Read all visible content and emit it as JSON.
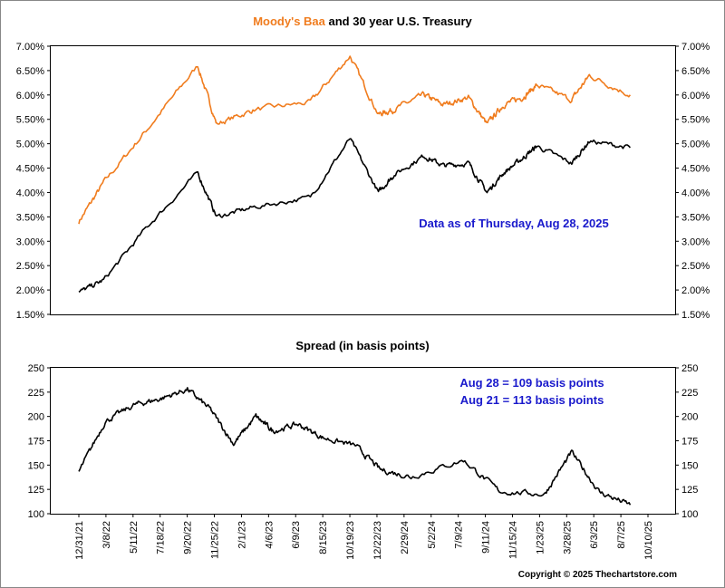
{
  "colors": {
    "baa": "#F07C1E",
    "treasury": "#000000",
    "spread": "#000000",
    "note": "#1A1ACC",
    "border": "#888888"
  },
  "copyright": "Copyright © 2025 Thechartstore.com",
  "chart_data": [
    {
      "type": "line",
      "title_highlight": "Moody's Baa",
      "title_rest": " and 30 year U.S. Treasury",
      "ylim": [
        1.5,
        7.0
      ],
      "yticks": [
        "1.50%",
        "2.00%",
        "2.50%",
        "3.00%",
        "3.50%",
        "4.00%",
        "4.50%",
        "5.00%",
        "5.50%",
        "6.00%",
        "6.50%",
        "7.00%"
      ],
      "annotation": "Data as of Thursday, Aug 28, 2025",
      "x_dates": [
        "2021-12-31",
        "2022-03-01",
        "2022-06-15",
        "2022-10-15",
        "2022-11-30",
        "2023-03-01",
        "2023-07-15",
        "2023-10-19",
        "2023-12-27",
        "2024-02-01",
        "2024-04-15",
        "2024-06-01",
        "2024-08-01",
        "2024-09-15",
        "2024-10-25",
        "2024-12-10",
        "2025-01-14",
        "2025-04-08",
        "2025-05-21",
        "2025-08-28"
      ],
      "series": [
        {
          "name": "Moody's Baa",
          "values": [
            3.4,
            4.2,
            5.3,
            6.6,
            5.4,
            5.7,
            5.85,
            6.8,
            5.6,
            5.7,
            6.0,
            5.8,
            5.95,
            5.4,
            5.8,
            5.95,
            6.2,
            5.9,
            6.4,
            6.0
          ]
        },
        {
          "name": "30 year U.S. Treasury",
          "values": [
            1.95,
            2.2,
            3.3,
            4.4,
            3.5,
            3.7,
            3.9,
            5.1,
            4.0,
            4.35,
            4.75,
            4.55,
            4.6,
            4.0,
            4.4,
            4.7,
            4.95,
            4.6,
            5.05,
            4.92
          ]
        }
      ]
    },
    {
      "type": "line",
      "title": "Spread (in basis points)",
      "ylim": [
        100,
        250
      ],
      "yticks": [
        "100",
        "125",
        "150",
        "175",
        "200",
        "225",
        "250"
      ],
      "annotations": [
        "Aug 28 = 109 basis points",
        "Aug 21 = 113 basis points"
      ],
      "x_dates": [
        "2021-12-31",
        "2022-03-05",
        "2022-05-15",
        "2022-07-15",
        "2022-09-20",
        "2022-11-15",
        "2023-01-10",
        "2023-03-05",
        "2023-04-15",
        "2023-06-15",
        "2023-08-15",
        "2023-11-01",
        "2024-01-01",
        "2024-03-15",
        "2024-07-20",
        "2024-10-15",
        "2025-02-01",
        "2025-04-08",
        "2025-06-15",
        "2025-08-28"
      ],
      "series": [
        {
          "name": "Spread",
          "values": [
            143,
            195,
            212,
            218,
            228,
            207,
            172,
            200,
            185,
            192,
            178,
            170,
            145,
            138,
            155,
            123,
            120,
            163,
            122,
            109
          ]
        }
      ],
      "xlabels": [
        "12/31/21",
        "3/8/22",
        "5/11/22",
        "7/18/22",
        "9/20/22",
        "11/25/22",
        "2/1/23",
        "4/6/23",
        "6/9/23",
        "8/15/23",
        "10/19/23",
        "12/22/23",
        "2/29/24",
        "5/2/24",
        "7/9/24",
        "9/11/24",
        "11/15/24",
        "1/23/25",
        "3/28/25",
        "6/3/25",
        "8/7/25",
        "10/10/25"
      ]
    }
  ]
}
